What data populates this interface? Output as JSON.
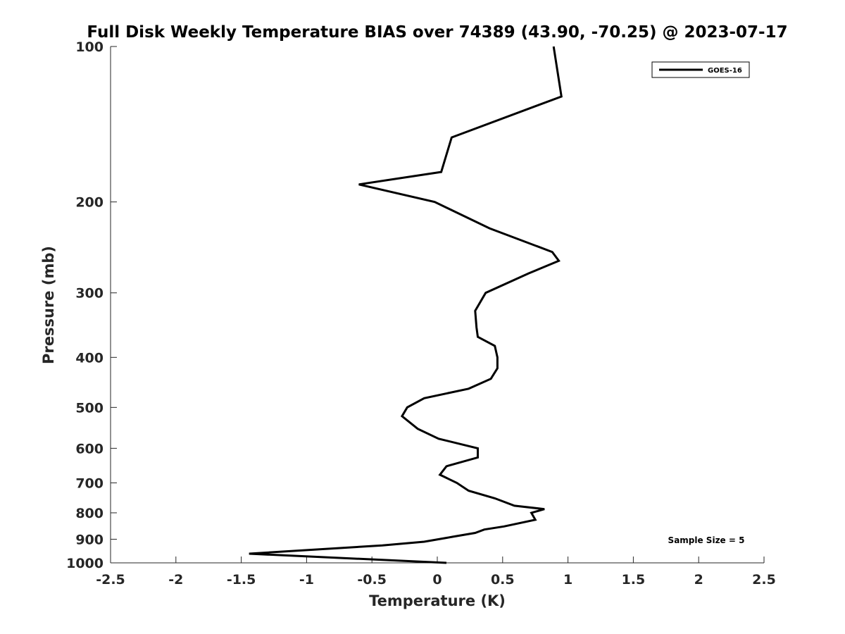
{
  "chart_data": {
    "type": "line",
    "title": "Full Disk Weekly Temperature BIAS over 74389 (43.90, -70.25) @ 2023-07-17",
    "xlabel": "Temperature (K)",
    "ylabel": "Pressure (mb)",
    "xlim": [
      -2.5,
      2.5
    ],
    "ylim": [
      100,
      1000
    ],
    "y_scale": "log",
    "y_reversed": true,
    "grid": false,
    "legend_position": "top-right",
    "x_ticks": [
      "-2.5",
      "-2",
      "-1.5",
      "-1",
      "-0.5",
      "0",
      "0.5",
      "1",
      "1.5",
      "2",
      "2.5"
    ],
    "x_tick_values": [
      -2.5,
      -2,
      -1.5,
      -1,
      -0.5,
      0,
      0.5,
      1,
      1.5,
      2,
      2.5
    ],
    "y_ticks": [
      "100",
      "200",
      "300",
      "400",
      "500",
      "600",
      "700",
      "800",
      "900",
      "1000"
    ],
    "y_tick_values": [
      100,
      200,
      300,
      400,
      500,
      600,
      700,
      800,
      900,
      1000
    ],
    "series": [
      {
        "name": "GOES-16",
        "color": "#000000",
        "x": [
          0.89,
          0.95,
          0.11,
          0.03,
          -0.6,
          -0.02,
          0.4,
          0.88,
          0.93,
          0.7,
          0.37,
          0.29,
          0.3,
          0.31,
          0.44,
          0.46,
          0.46,
          0.41,
          0.24,
          -0.1,
          -0.23,
          -0.27,
          -0.15,
          0.01,
          0.31,
          0.31,
          0.07,
          0.02,
          0.15,
          0.24,
          0.44,
          0.59,
          0.82,
          0.72,
          0.75,
          0.51,
          0.36,
          0.29,
          0.12,
          -0.1,
          -0.42,
          -1.44,
          0.07
        ],
        "y": [
          100,
          125,
          150,
          175,
          185,
          200,
          225,
          250,
          260,
          275,
          300,
          325,
          350,
          365,
          380,
          400,
          420,
          440,
          460,
          480,
          500,
          520,
          550,
          575,
          600,
          625,
          650,
          675,
          700,
          725,
          750,
          775,
          787,
          800,
          825,
          850,
          862,
          875,
          890,
          910,
          925,
          960,
          1000
        ]
      }
    ],
    "annotation": "Sample Size = 5"
  }
}
